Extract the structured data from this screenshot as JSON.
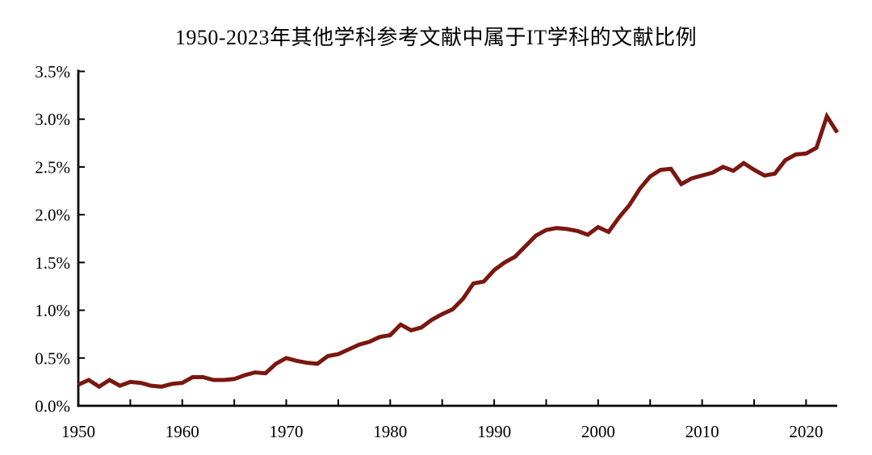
{
  "page": {
    "background": "#ffffff"
  },
  "chart_data": {
    "type": "line",
    "title": "1950-2023年其他学科参考文献中属于IT学科的文献比例",
    "xlabel": "",
    "ylabel": "",
    "grid": false,
    "legend": false,
    "line_color": "#7A170F",
    "axis_color": "#000000",
    "xlim": [
      1950,
      2023
    ],
    "ylim": [
      0,
      3.5
    ],
    "y_ticks": [
      0.0,
      0.5,
      1.0,
      1.5,
      2.0,
      2.5,
      3.0,
      3.5
    ],
    "y_tick_labels": [
      "0.0%",
      "0.5%",
      "1.0%",
      "1.5%",
      "2.0%",
      "2.5%",
      "3.0%",
      "3.5%"
    ],
    "x_major_ticks": [
      1950,
      1960,
      1970,
      1980,
      1990,
      2000,
      2010,
      2020
    ],
    "x_tick_labels": [
      "1950",
      "1960",
      "1970",
      "1980",
      "1990",
      "2000",
      "2010",
      "2020"
    ],
    "x_minor_tick_step": 5,
    "x": [
      1950,
      1951,
      1952,
      1953,
      1954,
      1955,
      1956,
      1957,
      1958,
      1959,
      1960,
      1961,
      1962,
      1963,
      1964,
      1965,
      1966,
      1967,
      1968,
      1969,
      1970,
      1971,
      1972,
      1973,
      1974,
      1975,
      1976,
      1977,
      1978,
      1979,
      1980,
      1981,
      1982,
      1983,
      1984,
      1985,
      1986,
      1987,
      1988,
      1989,
      1990,
      1991,
      1992,
      1993,
      1994,
      1995,
      1996,
      1997,
      1998,
      1999,
      2000,
      2001,
      2002,
      2003,
      2004,
      2005,
      2006,
      2007,
      2008,
      2009,
      2010,
      2011,
      2012,
      2013,
      2014,
      2015,
      2016,
      2017,
      2018,
      2019,
      2020,
      2021,
      2022,
      2023
    ],
    "values": [
      0.22,
      0.27,
      0.2,
      0.27,
      0.21,
      0.25,
      0.24,
      0.21,
      0.2,
      0.23,
      0.24,
      0.3,
      0.3,
      0.27,
      0.27,
      0.28,
      0.32,
      0.35,
      0.34,
      0.44,
      0.5,
      0.47,
      0.45,
      0.44,
      0.52,
      0.54,
      0.59,
      0.64,
      0.67,
      0.72,
      0.74,
      0.85,
      0.79,
      0.82,
      0.9,
      0.96,
      1.01,
      1.12,
      1.28,
      1.3,
      1.42,
      1.5,
      1.56,
      1.67,
      1.78,
      1.84,
      1.86,
      1.85,
      1.83,
      1.79,
      1.87,
      1.82,
      1.97,
      2.1,
      2.27,
      2.4,
      2.47,
      2.48,
      2.32,
      2.38,
      2.41,
      2.44,
      2.5,
      2.46,
      2.54,
      2.47,
      2.41,
      2.43,
      2.57,
      2.63,
      2.64,
      2.7,
      3.03,
      2.86
    ]
  }
}
